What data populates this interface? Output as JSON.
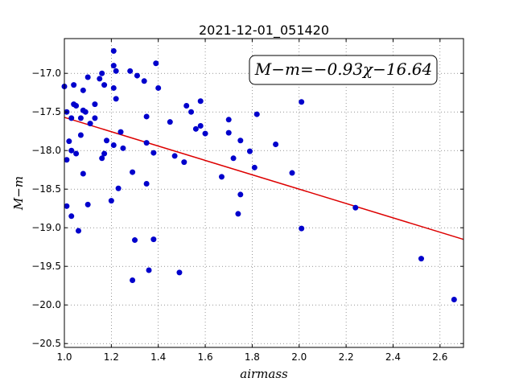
{
  "chart_data": {
    "type": "scatter",
    "title": "2021-12-01_051420",
    "xlabel": "airmass",
    "ylabel": "M−m",
    "xlim": [
      1.0,
      2.7
    ],
    "ylim": [
      -20.55,
      -16.55
    ],
    "y_inverted": true,
    "grid": true,
    "x_ticks": [
      1.0,
      1.2,
      1.4,
      1.6,
      1.8,
      2.0,
      2.2,
      2.4,
      2.6
    ],
    "x_tick_labels": [
      "1.0",
      "1.2",
      "1.4",
      "1.6",
      "1.8",
      "2.0",
      "2.2",
      "2.4",
      "2.6"
    ],
    "y_ticks": [
      -17.0,
      -17.5,
      -18.0,
      -18.5,
      -19.0,
      -19.5,
      -20.0,
      -20.5
    ],
    "y_tick_labels": [
      "−17.0",
      "−17.5",
      "−18.0",
      "−18.5",
      "−19.0",
      "−19.5",
      "−20.0",
      "−20.5"
    ],
    "annotation": "M−m=−0.93χ−16.64",
    "annotation_position": "top-right",
    "fit": {
      "slope": -0.93,
      "intercept": -16.64,
      "color": "#dd0000"
    },
    "point_color": "#0000cc",
    "points": [
      [
        1.0,
        -17.17
      ],
      [
        1.01,
        -17.5
      ],
      [
        1.01,
        -18.12
      ],
      [
        1.01,
        -18.72
      ],
      [
        1.02,
        -17.88
      ],
      [
        1.03,
        -17.58
      ],
      [
        1.03,
        -18.0
      ],
      [
        1.03,
        -18.85
      ],
      [
        1.04,
        -17.15
      ],
      [
        1.04,
        -17.4
      ],
      [
        1.05,
        -17.42
      ],
      [
        1.05,
        -18.04
      ],
      [
        1.06,
        -19.04
      ],
      [
        1.07,
        -17.58
      ],
      [
        1.07,
        -17.8
      ],
      [
        1.08,
        -17.22
      ],
      [
        1.08,
        -17.48
      ],
      [
        1.08,
        -18.3
      ],
      [
        1.09,
        -17.5
      ],
      [
        1.1,
        -17.05
      ],
      [
        1.1,
        -18.7
      ],
      [
        1.11,
        -17.65
      ],
      [
        1.13,
        -17.4
      ],
      [
        1.13,
        -17.58
      ],
      [
        1.15,
        -17.07
      ],
      [
        1.16,
        -17.0
      ],
      [
        1.16,
        -18.1
      ],
      [
        1.17,
        -17.15
      ],
      [
        1.17,
        -18.04
      ],
      [
        1.18,
        -17.87
      ],
      [
        1.2,
        -18.65
      ],
      [
        1.21,
        -16.71
      ],
      [
        1.21,
        -16.9
      ],
      [
        1.21,
        -17.19
      ],
      [
        1.21,
        -17.93
      ],
      [
        1.22,
        -16.97
      ],
      [
        1.22,
        -17.33
      ],
      [
        1.23,
        -18.49
      ],
      [
        1.24,
        -17.76
      ],
      [
        1.25,
        -17.97
      ],
      [
        1.28,
        -16.97
      ],
      [
        1.29,
        -18.28
      ],
      [
        1.29,
        -19.68
      ],
      [
        1.3,
        -19.16
      ],
      [
        1.31,
        -17.03
      ],
      [
        1.34,
        -17.1
      ],
      [
        1.35,
        -17.56
      ],
      [
        1.35,
        -17.9
      ],
      [
        1.35,
        -18.43
      ],
      [
        1.36,
        -19.55
      ],
      [
        1.38,
        -19.15
      ],
      [
        1.38,
        -18.03
      ],
      [
        1.39,
        -16.87
      ],
      [
        1.4,
        -17.19
      ],
      [
        1.45,
        -17.63
      ],
      [
        1.47,
        -18.07
      ],
      [
        1.49,
        -19.58
      ],
      [
        1.51,
        -18.15
      ],
      [
        1.52,
        -17.42
      ],
      [
        1.54,
        -17.5
      ],
      [
        1.56,
        -17.72
      ],
      [
        1.58,
        -17.68
      ],
      [
        1.58,
        -17.36
      ],
      [
        1.6,
        -17.78
      ],
      [
        1.67,
        -18.34
      ],
      [
        1.7,
        -17.6
      ],
      [
        1.7,
        -17.77
      ],
      [
        1.72,
        -18.1
      ],
      [
        1.74,
        -18.82
      ],
      [
        1.75,
        -17.87
      ],
      [
        1.75,
        -18.57
      ],
      [
        1.79,
        -18.01
      ],
      [
        1.81,
        -18.22
      ],
      [
        1.82,
        -17.53
      ],
      [
        1.9,
        -17.92
      ],
      [
        1.97,
        -18.29
      ],
      [
        2.01,
        -17.37
      ],
      [
        2.01,
        -19.01
      ],
      [
        2.24,
        -18.74
      ],
      [
        2.52,
        -19.4
      ],
      [
        2.66,
        -19.93
      ]
    ]
  }
}
